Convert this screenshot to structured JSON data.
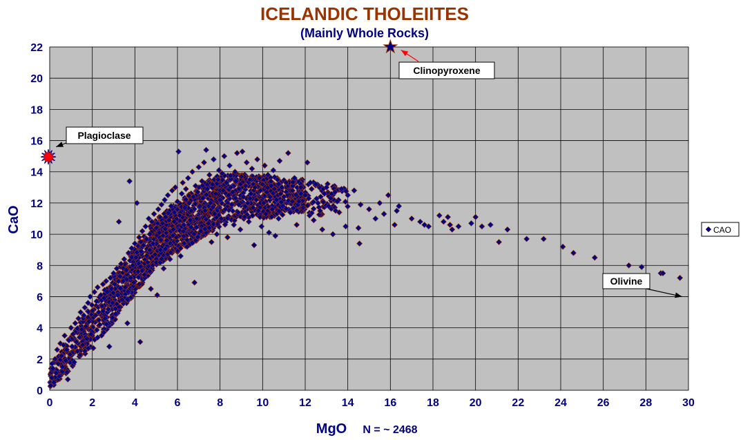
{
  "chart_data": {
    "type": "scatter",
    "title": "ICELANDIC THOLEIITES",
    "subtitle": "(Mainly Whole Rocks)",
    "xlabel": "MgO",
    "xlabel_note": "N = ~ 2468",
    "ylabel": "CaO",
    "xlim": [
      0,
      30
    ],
    "ylim": [
      0,
      22
    ],
    "x_ticks": [
      "0",
      "2",
      "4",
      "6",
      "8",
      "10",
      "12",
      "14",
      "16",
      "18",
      "20",
      "22",
      "24",
      "26",
      "28",
      "30"
    ],
    "y_ticks": [
      "0",
      "2",
      "4",
      "6",
      "8",
      "10",
      "12",
      "14",
      "16",
      "18",
      "20",
      "22"
    ],
    "grid": true,
    "legend_position": "right",
    "series": [
      {
        "name": "CAO",
        "marker": "diamond",
        "color": "#000080",
        "edge_color": "#993300",
        "points": [
          [
            0.05,
            0.3
          ],
          [
            0.1,
            0.8
          ],
          [
            0.15,
            1.4
          ],
          [
            0.2,
            0.5
          ],
          [
            0.25,
            2.0
          ],
          [
            0.3,
            1.1
          ],
          [
            0.35,
            2.6
          ],
          [
            0.4,
            1.7
          ],
          [
            0.45,
            0.9
          ],
          [
            0.5,
            3.0
          ],
          [
            0.55,
            2.2
          ],
          [
            0.6,
            1.5
          ],
          [
            0.65,
            2.9
          ],
          [
            0.7,
            3.5
          ],
          [
            0.75,
            1.9
          ],
          [
            0.8,
            2.6
          ],
          [
            0.85,
            0.7
          ],
          [
            0.9,
            3.2
          ],
          [
            0.95,
            2.3
          ],
          [
            1.0,
            4.0
          ],
          [
            1.05,
            2.8
          ],
          [
            1.1,
            3.6
          ],
          [
            1.15,
            1.8
          ],
          [
            1.2,
            4.3
          ],
          [
            1.25,
            3.1
          ],
          [
            1.3,
            2.5
          ],
          [
            1.35,
            4.6
          ],
          [
            1.4,
            3.4
          ],
          [
            1.45,
            5.0
          ],
          [
            1.5,
            3.9
          ],
          [
            1.55,
            2.9
          ],
          [
            1.6,
            4.8
          ],
          [
            1.65,
            5.3
          ],
          [
            1.7,
            4.1
          ],
          [
            1.75,
            3.3
          ],
          [
            1.8,
            5.6
          ],
          [
            1.85,
            4.4
          ],
          [
            1.9,
            6.0
          ],
          [
            1.95,
            3.6
          ],
          [
            2.0,
            5.1
          ],
          [
            2.05,
            2.7
          ],
          [
            2.1,
            6.3
          ],
          [
            2.15,
            4.8
          ],
          [
            2.2,
            5.7
          ],
          [
            2.25,
            6.6
          ],
          [
            2.3,
            5.0
          ],
          [
            2.35,
            4.2
          ],
          [
            2.4,
            6.1
          ],
          [
            2.45,
            5.4
          ],
          [
            2.5,
            6.8
          ],
          [
            2.55,
            5.9
          ],
          [
            2.6,
            4.6
          ],
          [
            2.65,
            7.0
          ],
          [
            2.7,
            6.3
          ],
          [
            2.75,
            5.2
          ],
          [
            2.8,
            2.8
          ],
          [
            2.85,
            7.2
          ],
          [
            2.9,
            6.5
          ],
          [
            2.95,
            5.6
          ],
          [
            3.0,
            7.5
          ],
          [
            3.05,
            6.8
          ],
          [
            3.1,
            4.9
          ],
          [
            3.15,
            7.8
          ],
          [
            3.2,
            6.1
          ],
          [
            3.25,
            10.8
          ],
          [
            3.3,
            7.3
          ],
          [
            3.35,
            8.1
          ],
          [
            3.4,
            5.8
          ],
          [
            3.45,
            7.0
          ],
          [
            3.5,
            8.4
          ],
          [
            3.55,
            6.6
          ],
          [
            3.6,
            7.7
          ],
          [
            3.65,
            4.3
          ],
          [
            3.7,
            8.8
          ],
          [
            3.75,
            13.4
          ],
          [
            3.8,
            7.2
          ],
          [
            3.85,
            9.1
          ],
          [
            3.9,
            8.0
          ],
          [
            3.95,
            6.9
          ],
          [
            4.0,
            9.4
          ],
          [
            4.05,
            8.5
          ],
          [
            4.1,
            12.0
          ],
          [
            4.15,
            7.6
          ],
          [
            4.2,
            9.8
          ],
          [
            4.25,
            3.1
          ],
          [
            4.3,
            8.9
          ],
          [
            4.35,
            10.2
          ],
          [
            4.4,
            9.3
          ],
          [
            4.45,
            7.4
          ],
          [
            4.5,
            10.5
          ],
          [
            4.55,
            9.7
          ],
          [
            4.6,
            8.2
          ],
          [
            4.65,
            11.0
          ],
          [
            4.7,
            10.0
          ],
          [
            4.75,
            6.5
          ],
          [
            4.8,
            10.8
          ],
          [
            4.85,
            9.4
          ],
          [
            4.9,
            11.3
          ],
          [
            4.95,
            8.7
          ],
          [
            5.0,
            10.4
          ],
          [
            5.05,
            6.1
          ],
          [
            5.1,
            11.6
          ],
          [
            5.15,
            10.1
          ],
          [
            5.2,
            9.0
          ],
          [
            5.25,
            11.9
          ],
          [
            5.3,
            10.7
          ],
          [
            5.35,
            7.8
          ],
          [
            5.4,
            12.2
          ],
          [
            5.45,
            11.1
          ],
          [
            5.5,
            9.6
          ],
          [
            5.55,
            12.5
          ],
          [
            5.6,
            10.9
          ],
          [
            5.65,
            8.4
          ],
          [
            5.7,
            11.8
          ],
          [
            5.75,
            12.8
          ],
          [
            5.8,
            10.3
          ],
          [
            5.85,
            11.4
          ],
          [
            5.9,
            13.0
          ],
          [
            5.95,
            9.8
          ],
          [
            6.0,
            12.1
          ],
          [
            6.05,
            15.3
          ],
          [
            6.1,
            11.2
          ],
          [
            6.15,
            8.6
          ],
          [
            6.2,
            12.6
          ],
          [
            6.25,
            13.3
          ],
          [
            6.3,
            10.6
          ],
          [
            6.35,
            11.7
          ],
          [
            6.4,
            12.9
          ],
          [
            6.45,
            9.2
          ],
          [
            6.5,
            13.6
          ],
          [
            6.55,
            12.0
          ],
          [
            6.6,
            10.9
          ],
          [
            6.65,
            11.5
          ],
          [
            6.7,
            14.0
          ],
          [
            6.75,
            12.4
          ],
          [
            6.8,
            6.9
          ],
          [
            6.85,
            13.1
          ],
          [
            6.9,
            11.0
          ],
          [
            6.95,
            12.7
          ],
          [
            7.0,
            14.3
          ],
          [
            7.05,
            11.8
          ],
          [
            7.1,
            10.2
          ],
          [
            7.15,
            13.4
          ],
          [
            7.2,
            12.3
          ],
          [
            7.25,
            14.6
          ],
          [
            7.3,
            11.5
          ],
          [
            7.35,
            15.4
          ],
          [
            7.4,
            12.9
          ],
          [
            7.45,
            10.7
          ],
          [
            7.5,
            13.8
          ],
          [
            7.55,
            12.0
          ],
          [
            7.6,
            9.5
          ],
          [
            7.65,
            13.2
          ],
          [
            7.7,
            14.8
          ],
          [
            7.75,
            11.3
          ],
          [
            7.8,
            12.6
          ],
          [
            7.85,
            10.0
          ],
          [
            7.9,
            13.5
          ],
          [
            7.95,
            14.1
          ],
          [
            8.0,
            12.2
          ],
          [
            8.05,
            11.0
          ],
          [
            8.1,
            13.9
          ],
          [
            8.15,
            12.8
          ],
          [
            8.2,
            15.0
          ],
          [
            8.25,
            11.6
          ],
          [
            8.3,
            13.3
          ],
          [
            8.35,
            9.8
          ],
          [
            8.4,
            12.5
          ],
          [
            8.45,
            14.4
          ],
          [
            8.5,
            13.0
          ],
          [
            8.55,
            11.9
          ],
          [
            8.6,
            12.7
          ],
          [
            8.65,
            10.6
          ],
          [
            8.7,
            14.0
          ],
          [
            8.75,
            13.4
          ],
          [
            8.8,
            15.2
          ],
          [
            8.85,
            11.4
          ],
          [
            8.9,
            12.9
          ],
          [
            8.95,
            10.3
          ],
          [
            9.0,
            13.7
          ],
          [
            9.05,
            15.3
          ],
          [
            9.1,
            12.4
          ],
          [
            9.15,
            11.1
          ],
          [
            9.2,
            13.1
          ],
          [
            9.25,
            14.6
          ],
          [
            9.3,
            12.0
          ],
          [
            9.35,
            10.8
          ],
          [
            9.4,
            13.5
          ],
          [
            9.45,
            12.6
          ],
          [
            9.5,
            14.2
          ],
          [
            9.55,
            11.7
          ],
          [
            9.6,
            9.3
          ],
          [
            9.65,
            13.0
          ],
          [
            9.7,
            12.2
          ],
          [
            9.75,
            14.8
          ],
          [
            9.8,
            11.5
          ],
          [
            9.85,
            13.6
          ],
          [
            9.9,
            12.8
          ],
          [
            9.95,
            10.5
          ],
          [
            10.0,
            13.2
          ],
          [
            10.05,
            12.0
          ],
          [
            10.1,
            14.4
          ],
          [
            10.15,
            11.3
          ],
          [
            10.2,
            12.7
          ],
          [
            10.25,
            13.8
          ],
          [
            10.3,
            10.1
          ],
          [
            10.35,
            12.4
          ],
          [
            10.4,
            13.1
          ],
          [
            10.45,
            11.6
          ],
          [
            10.5,
            14.1
          ],
          [
            10.55,
            12.9
          ],
          [
            10.6,
            9.9
          ],
          [
            10.65,
            12.2
          ],
          [
            10.7,
            13.5
          ],
          [
            10.75,
            11.0
          ],
          [
            10.8,
            14.7
          ],
          [
            10.85,
            12.6
          ],
          [
            10.9,
            13.0
          ],
          [
            10.95,
            11.8
          ],
          [
            11.0,
            12.4
          ],
          [
            11.1,
            13.3
          ],
          [
            11.2,
            15.2
          ],
          [
            11.3,
            11.4
          ],
          [
            11.4,
            12.8
          ],
          [
            11.5,
            13.6
          ],
          [
            11.6,
            10.6
          ],
          [
            11.7,
            12.1
          ],
          [
            11.8,
            13.0
          ],
          [
            11.9,
            11.7
          ],
          [
            12.0,
            12.5
          ],
          [
            12.1,
            14.6
          ],
          [
            12.2,
            11.2
          ],
          [
            12.3,
            12.9
          ],
          [
            12.4,
            10.9
          ],
          [
            12.5,
            13.2
          ],
          [
            12.6,
            12.0
          ],
          [
            12.7,
            11.5
          ],
          [
            12.8,
            10.3
          ],
          [
            12.9,
            12.6
          ],
          [
            13.0,
            13.0
          ],
          [
            13.1,
            11.8
          ],
          [
            13.2,
            12.3
          ],
          [
            13.3,
            10.0
          ],
          [
            13.4,
            12.7
          ],
          [
            13.5,
            12.1
          ],
          [
            13.6,
            11.4
          ],
          [
            13.7,
            12.9
          ],
          [
            13.9,
            10.5
          ],
          [
            14.0,
            12.5
          ],
          [
            14.3,
            12.8
          ],
          [
            14.5,
            10.4
          ],
          [
            14.55,
            9.4
          ],
          [
            14.6,
            11.9
          ],
          [
            15.0,
            11.6
          ],
          [
            15.3,
            11.0
          ],
          [
            15.5,
            12.0
          ],
          [
            15.7,
            11.3
          ],
          [
            15.9,
            12.5
          ],
          [
            16.2,
            10.6
          ],
          [
            16.3,
            11.5
          ],
          [
            16.4,
            11.8
          ],
          [
            17.0,
            11.0
          ],
          [
            17.4,
            10.8
          ],
          [
            17.6,
            10.6
          ],
          [
            17.8,
            10.5
          ],
          [
            18.3,
            11.2
          ],
          [
            18.5,
            10.8
          ],
          [
            18.7,
            11.1
          ],
          [
            18.8,
            10.6
          ],
          [
            18.9,
            10.3
          ],
          [
            19.2,
            10.5
          ],
          [
            19.8,
            10.7
          ],
          [
            20.0,
            11.1
          ],
          [
            20.3,
            10.5
          ],
          [
            20.7,
            10.6
          ],
          [
            21.1,
            9.5
          ],
          [
            21.5,
            10.3
          ],
          [
            22.4,
            9.7
          ],
          [
            23.2,
            9.7
          ],
          [
            24.1,
            9.2
          ],
          [
            24.6,
            8.8
          ],
          [
            25.6,
            8.5
          ],
          [
            27.2,
            8.0
          ],
          [
            27.8,
            7.9
          ],
          [
            28.7,
            7.5
          ],
          [
            28.8,
            7.5
          ],
          [
            29.6,
            7.2
          ]
        ]
      }
    ],
    "dense_bands": [
      {
        "x_from": 0.0,
        "x_to": 2.5,
        "y_low_from": 0.0,
        "y_low_to": 3.5,
        "y_high_from": 1.5,
        "y_high_to": 6.5,
        "count": 200
      },
      {
        "x_from": 2.5,
        "x_to": 5.0,
        "y_low_from": 3.5,
        "y_low_to": 8.0,
        "y_high_from": 6.5,
        "y_high_to": 11.0,
        "count": 350
      },
      {
        "x_from": 5.0,
        "x_to": 8.0,
        "y_low_from": 8.0,
        "y_low_to": 10.5,
        "y_high_from": 11.0,
        "y_high_to": 14.0,
        "count": 600
      },
      {
        "x_from": 8.0,
        "x_to": 12.0,
        "y_low_from": 10.5,
        "y_low_to": 11.5,
        "y_high_from": 14.0,
        "y_high_to": 13.5,
        "count": 450
      },
      {
        "x_from": 12.0,
        "x_to": 14.0,
        "y_low_from": 11.0,
        "y_low_to": 11.5,
        "y_high_from": 13.5,
        "y_high_to": 13.0,
        "count": 60
      }
    ],
    "special_points": [
      {
        "label": "Plagioclase",
        "x": 0.0,
        "y": 15.0,
        "marker": "star",
        "color": "#ff0000"
      },
      {
        "label": "Clinopyroxene",
        "x": 16.0,
        "y": 22.0,
        "marker": "star",
        "color": "#000080"
      }
    ],
    "annotations": [
      {
        "text": "Plagioclase",
        "target_x": 0.3,
        "target_y": 15.6,
        "arrow_color": "#000000"
      },
      {
        "text": "Clinopyroxene",
        "target_x": 16.5,
        "target_y": 21.8,
        "arrow_color": "#ff0000"
      },
      {
        "text": "Olivine",
        "target_x": 29.7,
        "target_y": 6.0,
        "arrow_color": "#000000"
      }
    ],
    "legend_entries": [
      "CAO"
    ]
  }
}
